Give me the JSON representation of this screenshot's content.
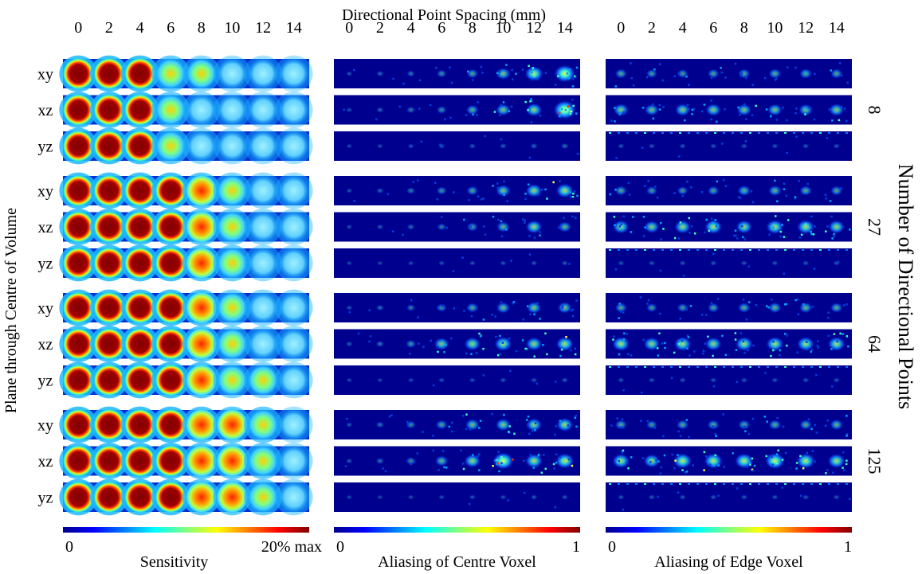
{
  "chart_data": {
    "type": "heatmap",
    "title": "Directional Point Spacing (mm)",
    "ylabel": "Plane through Centre of Volume",
    "right_label": "Number of Directional Points",
    "spacings": [
      "0",
      "2",
      "4",
      "6",
      "8",
      "10",
      "12",
      "14"
    ],
    "planes": [
      "xy",
      "xz",
      "yz"
    ],
    "directional_points": [
      "8",
      "27",
      "64",
      "125"
    ],
    "panels": [
      {
        "id": "sensitivity",
        "colorbar_label": "Sensitivity",
        "colorbar_min": "0",
        "colorbar_max": "20% max",
        "colormap": [
          "#00008f",
          "#0050ff",
          "#00ffff",
          "#ffff00",
          "#ff3000",
          "#800000"
        ],
        "intensity_by_group": [
          [
            [
              1.0,
              1.0,
              1.0,
              0.65,
              0.35,
              0.12,
              0.06,
              0.04
            ],
            [
              1.0,
              1.0,
              1.0,
              0.6,
              0.3,
              0.14,
              0.08,
              0.05
            ],
            [
              1.0,
              1.0,
              1.0,
              0.65,
              0.25,
              0.12,
              0.08,
              0.05
            ]
          ],
          [
            [
              1.0,
              1.0,
              1.0,
              1.0,
              0.8,
              0.45,
              0.22,
              0.18
            ],
            [
              1.0,
              1.0,
              1.0,
              1.0,
              0.75,
              0.5,
              0.22,
              0.18
            ],
            [
              1.0,
              1.0,
              1.0,
              1.0,
              0.8,
              0.55,
              0.2,
              0.12
            ]
          ],
          [
            [
              1.0,
              1.0,
              1.0,
              1.0,
              0.9,
              0.45,
              0.3,
              0.25
            ],
            [
              1.0,
              1.0,
              1.0,
              1.0,
              0.85,
              0.45,
              0.3,
              0.18
            ],
            [
              1.0,
              1.0,
              1.0,
              1.0,
              0.85,
              0.45,
              0.35,
              0.18
            ]
          ],
          [
            [
              1.0,
              1.0,
              1.0,
              1.0,
              0.85,
              0.7,
              0.65,
              0.08
            ],
            [
              1.0,
              1.0,
              1.0,
              1.0,
              0.85,
              0.75,
              0.65,
              0.12
            ],
            [
              1.0,
              1.0,
              1.0,
              1.0,
              0.8,
              0.7,
              0.65,
              0.25
            ]
          ]
        ]
      },
      {
        "id": "aliasing-centre",
        "colorbar_label": "Aliasing of Centre Voxel",
        "colorbar_min": "0",
        "colorbar_max": "1",
        "colormap": [
          "#00008f",
          "#0050ff",
          "#00ffff",
          "#ffff00",
          "#ff3000",
          "#800000"
        ],
        "intensity_by_group": [
          [
            [
              0.04,
              0.08,
              0.12,
              0.2,
              0.28,
              0.42,
              0.6,
              0.72
            ],
            [
              0.04,
              0.08,
              0.14,
              0.2,
              0.32,
              0.42,
              0.5,
              0.8
            ],
            [
              0.02,
              0.03,
              0.04,
              0.05,
              0.06,
              0.07,
              0.08,
              0.1
            ]
          ],
          [
            [
              0.04,
              0.08,
              0.14,
              0.22,
              0.28,
              0.42,
              0.5,
              0.55
            ],
            [
              0.03,
              0.06,
              0.1,
              0.16,
              0.26,
              0.35,
              0.5,
              0.35
            ],
            [
              0.02,
              0.02,
              0.03,
              0.04,
              0.04,
              0.05,
              0.05,
              0.06
            ]
          ],
          [
            [
              0.04,
              0.1,
              0.15,
              0.22,
              0.3,
              0.38,
              0.42,
              0.4
            ],
            [
              0.06,
              0.12,
              0.22,
              0.45,
              0.5,
              0.55,
              0.5,
              0.55
            ],
            [
              0.02,
              0.02,
              0.03,
              0.04,
              0.04,
              0.05,
              0.05,
              0.06
            ]
          ],
          [
            [
              0.05,
              0.12,
              0.2,
              0.28,
              0.4,
              0.45,
              0.48,
              0.52
            ],
            [
              0.05,
              0.12,
              0.2,
              0.35,
              0.5,
              0.7,
              0.55,
              0.6
            ],
            [
              0.02,
              0.02,
              0.03,
              0.03,
              0.04,
              0.04,
              0.05,
              0.05
            ]
          ]
        ]
      },
      {
        "id": "aliasing-edge",
        "colorbar_label": "Aliasing of Edge Voxel",
        "colorbar_min": "0",
        "colorbar_max": "1",
        "colormap": [
          "#00008f",
          "#0050ff",
          "#00ffff",
          "#ffff00",
          "#ff3000",
          "#800000"
        ],
        "intensity_by_group": [
          [
            [
              0.3,
              0.25,
              0.25,
              0.28,
              0.3,
              0.32,
              0.32,
              0.3
            ],
            [
              0.45,
              0.4,
              0.45,
              0.45,
              0.42,
              0.42,
              0.4,
              0.45
            ],
            [
              0.05,
              0.05,
              0.05,
              0.05,
              0.05,
              0.05,
              0.05,
              0.05
            ]
          ],
          [
            [
              0.3,
              0.25,
              0.25,
              0.28,
              0.35,
              0.35,
              0.32,
              0.3
            ],
            [
              0.5,
              0.45,
              0.5,
              0.55,
              0.5,
              0.55,
              0.55,
              0.5
            ],
            [
              0.05,
              0.05,
              0.05,
              0.05,
              0.05,
              0.05,
              0.05,
              0.05
            ]
          ],
          [
            [
              0.3,
              0.25,
              0.25,
              0.28,
              0.32,
              0.35,
              0.35,
              0.32
            ],
            [
              0.55,
              0.5,
              0.55,
              0.5,
              0.55,
              0.55,
              0.55,
              0.55
            ],
            [
              0.05,
              0.05,
              0.05,
              0.05,
              0.05,
              0.05,
              0.05,
              0.05
            ]
          ],
          [
            [
              0.3,
              0.25,
              0.3,
              0.3,
              0.3,
              0.32,
              0.32,
              0.35
            ],
            [
              0.55,
              0.5,
              0.6,
              0.6,
              0.6,
              0.65,
              0.6,
              0.55
            ],
            [
              0.05,
              0.05,
              0.05,
              0.05,
              0.05,
              0.05,
              0.05,
              0.05
            ]
          ]
        ]
      }
    ]
  }
}
